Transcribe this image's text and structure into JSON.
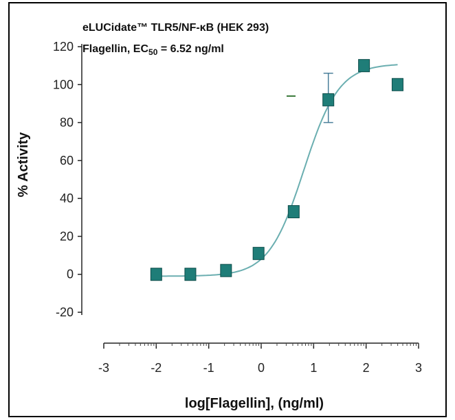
{
  "chart_data": {
    "type": "scatter",
    "annotation_line1": "eLUCidate™ TLR5/NF-κB (HEK 293)",
    "annotation_line2_prefix": "Flagellin, EC",
    "annotation_line2_sub": "50",
    "annotation_line2_suffix": " = 6.52 ng/ml",
    "xlabel": "log[Flagellin], (ng/ml)",
    "ylabel": "% Activity",
    "xlim": [
      -3,
      3
    ],
    "ylim": [
      -20,
      120
    ],
    "xticks": [
      -3,
      -2,
      -1,
      0,
      1,
      2,
      3
    ],
    "yticks": [
      -20,
      0,
      20,
      40,
      60,
      80,
      100,
      120
    ],
    "series": [
      {
        "marker": "square",
        "color": "#1f7d78",
        "x": [
          -2.0,
          -1.35,
          -0.67,
          -0.05,
          0.62,
          1.28,
          1.96,
          2.6
        ],
        "y": [
          0,
          0,
          2,
          11,
          33,
          92,
          110,
          100
        ],
        "error_bars": [
          {
            "x": 1.28,
            "low": 80,
            "high": 106
          }
        ]
      }
    ],
    "fit_curve": {
      "color": "#6aaeb0",
      "bottom": -1,
      "top": 111,
      "log_ec50": 0.814,
      "hill": 1.3,
      "x_range": [
        -2.0,
        2.6
      ]
    }
  }
}
